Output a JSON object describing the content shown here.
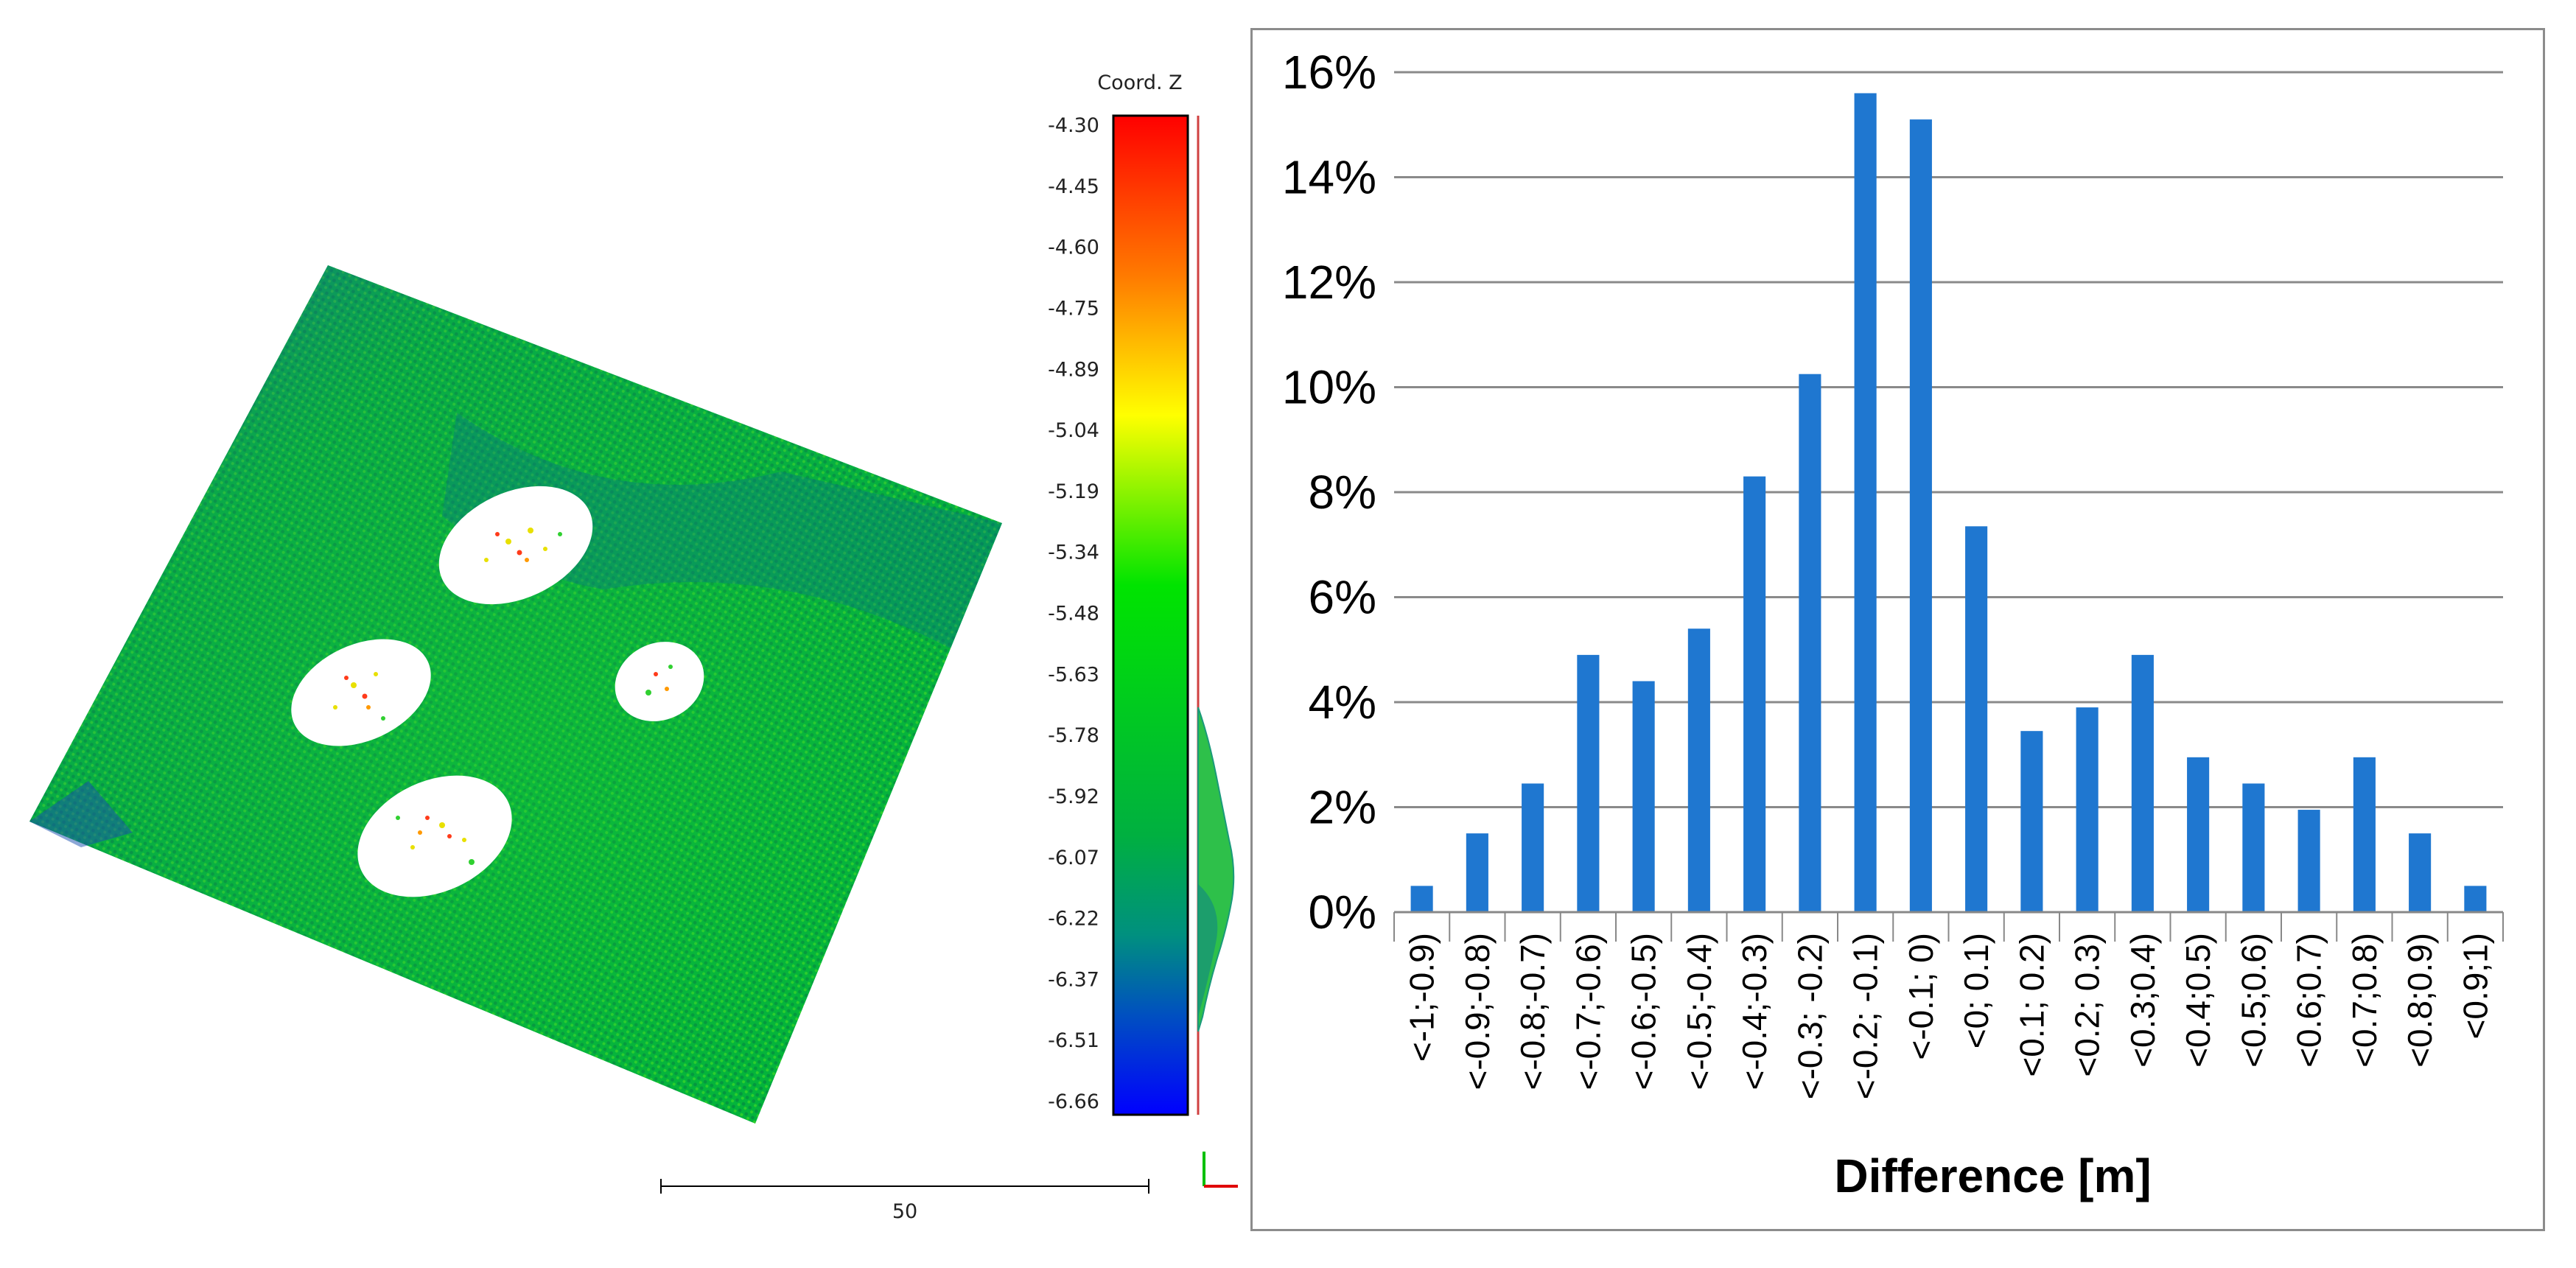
{
  "point_cloud": {
    "legend_title": "Coord. Z",
    "scale_labels": [
      "-4.30",
      "-4.45",
      "-4.60",
      "-4.75",
      "-4.89",
      "-5.04",
      "-5.19",
      "-5.34",
      "-5.48",
      "-5.63",
      "-5.78",
      "-5.92",
      "-6.07",
      "-6.22",
      "-6.37",
      "-6.51",
      "-6.66"
    ],
    "scale_bar_label": "50",
    "colors": {
      "high": "#ff0000",
      "orange": "#ff8c00",
      "yellow": "#ffff00",
      "green": "#00e400",
      "teal": "#00a07c",
      "blue_mid": "#0050c8",
      "low": "#0000ff"
    }
  },
  "chart_data": {
    "type": "bar",
    "title": "",
    "xlabel": "Difference [m]",
    "ylabel": "",
    "categories": [
      "<-1;-0.9)",
      "<-0.9;-0.8)",
      "<-0.8;-0.7)",
      "<-0.7;-0.6)",
      "<-0.6;-0.5)",
      "<-0.5;-0.4)",
      "<-0.4;-0.3)",
      "<-0.3;  -0.2)",
      "<-0.2;  -0.1)",
      "<-0.1;  0)",
      "<0;  0.1)",
      "<0.1;  0.2)",
      "<0.2;  0.3)",
      "<0.3;0.4)",
      "<0.4;0.5)",
      "<0.5;0.6)",
      "<0.6;0.7)",
      "<0.7;0.8)",
      "<0.8;0.9)",
      "<0.9;1)"
    ],
    "values": [
      0.5,
      1.5,
      2.45,
      4.9,
      4.4,
      5.4,
      8.3,
      10.25,
      15.6,
      15.1,
      7.35,
      3.45,
      3.9,
      4.9,
      2.95,
      2.45,
      1.95,
      2.95,
      1.5,
      0.5
    ],
    "ylim": [
      0,
      16
    ],
    "yticks": [
      "0%",
      "2%",
      "4%",
      "6%",
      "8%",
      "10%",
      "12%",
      "14%",
      "16%"
    ],
    "grid": true,
    "bar_color": "#1f77d0"
  }
}
